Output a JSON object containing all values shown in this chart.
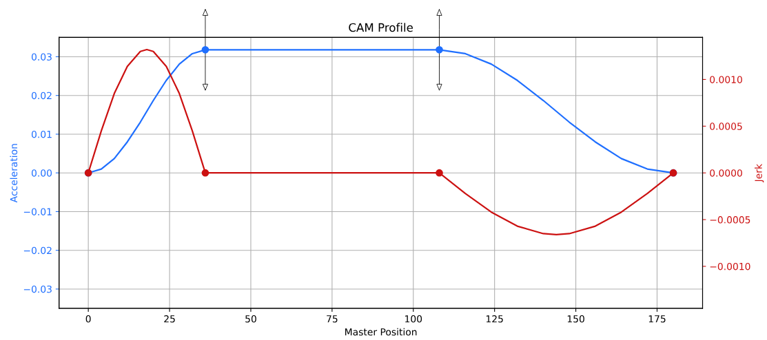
{
  "chart_data": {
    "type": "line",
    "title": "CAM Profile",
    "xlabel": "Master Position",
    "ylabel": "Acceleration",
    "y2label": "Jerk",
    "series": [
      {
        "color": "#1f6fff",
        "x": [
          0,
          4,
          8,
          12,
          16,
          20,
          24,
          28,
          32,
          36,
          108,
          116,
          124,
          132,
          140,
          148,
          156,
          164,
          172,
          180
        ],
        "values": [
          0,
          0.001,
          0.0037,
          0.008,
          0.0131,
          0.0187,
          0.0239,
          0.0281,
          0.0308,
          0.0318,
          0.0318,
          0.0308,
          0.0281,
          0.0239,
          0.0187,
          0.0131,
          0.008,
          0.0037,
          0.001,
          0
        ]
      },
      {
        "color": "#cc1111",
        "axis": "y2",
        "x": [
          0,
          4,
          8,
          12,
          16,
          18,
          20,
          24,
          28,
          32,
          36,
          108,
          116,
          124,
          132,
          140,
          144,
          148,
          156,
          164,
          172,
          180
        ],
        "values": [
          0,
          0.00045,
          0.00085,
          0.00114,
          0.0013,
          0.00132,
          0.0013,
          0.00114,
          0.00085,
          0.00045,
          0,
          0,
          -0.00022,
          -0.00042,
          -0.00057,
          -0.00065,
          -0.00066,
          -0.00065,
          -0.00057,
          -0.00042,
          -0.00022,
          0
        ]
      },
      {
        "type": "scatter",
        "color": "#1f6fff",
        "marker": "circle",
        "x": [
          0,
          36,
          108,
          180
        ],
        "values": [
          0,
          0.0318,
          0.0318,
          0
        ]
      },
      {
        "type": "scatter",
        "color": "#cc1111",
        "marker": "circle",
        "axis": "y2",
        "x": [
          0,
          36,
          108,
          180
        ],
        "values": [
          0,
          0,
          0,
          0
        ]
      }
    ],
    "xlim": [
      -9,
      189
    ],
    "xticks": [
      0,
      25,
      50,
      75,
      100,
      125,
      150,
      175
    ],
    "ylim": [
      -0.035,
      0.035
    ],
    "yticks": [
      {
        "value": -0.03,
        "label": "−0.03"
      },
      {
        "value": -0.02,
        "label": "−0.02"
      },
      {
        "value": -0.01,
        "label": "−0.01"
      },
      {
        "value": 0,
        "label": "0.00"
      },
      {
        "value": 0.01,
        "label": "0.01"
      },
      {
        "value": 0.02,
        "label": "0.02"
      },
      {
        "value": 0.03,
        "label": "0.03"
      }
    ],
    "y2lim": [
      -0.00145,
      0.00145
    ],
    "y2ticks": [
      {
        "value": -0.001,
        "label": "−0.0010"
      },
      {
        "value": -0.0005,
        "label": "−0.0005"
      },
      {
        "value": 0,
        "label": "0.0000"
      },
      {
        "value": 0.0005,
        "label": "0.0005"
      },
      {
        "value": 0.001,
        "label": "0.0010"
      }
    ],
    "grid": true,
    "marker": "none",
    "line_style": "solid",
    "legend": false
  }
}
